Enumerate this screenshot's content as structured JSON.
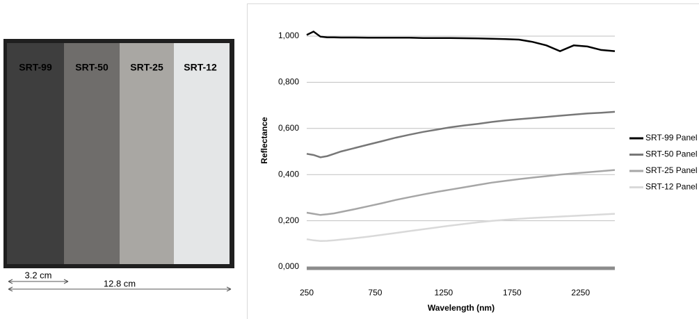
{
  "photo": {
    "panels": [
      "SRT-99",
      "SRT-50",
      "SRT-25",
      "SRT-12"
    ],
    "dimensions": [
      "3.2 cm",
      "12.8 cm"
    ]
  },
  "chart_data": {
    "type": "line",
    "x_label": "Wavelength (nm)",
    "y_label": "Reflectance",
    "x": [
      250,
      300,
      350,
      400,
      450,
      500,
      600,
      700,
      800,
      900,
      1000,
      1100,
      1200,
      1300,
      1400,
      1500,
      1600,
      1700,
      1800,
      1900,
      2000,
      2100,
      2200,
      2300,
      2400,
      2500
    ],
    "series": [
      {
        "name": "SRT-99 Panel",
        "color": "#000000",
        "values": [
          1.005,
          1.02,
          0.998,
          0.995,
          0.995,
          0.994,
          0.994,
          0.993,
          0.993,
          0.993,
          0.993,
          0.992,
          0.992,
          0.992,
          0.991,
          0.99,
          0.989,
          0.987,
          0.985,
          0.975,
          0.96,
          0.935,
          0.96,
          0.955,
          0.94,
          0.935
        ]
      },
      {
        "name": "SRT-50 Panel",
        "color": "#777777",
        "values": [
          0.49,
          0.485,
          0.475,
          0.48,
          0.49,
          0.5,
          0.515,
          0.53,
          0.545,
          0.56,
          0.573,
          0.585,
          0.595,
          0.605,
          0.613,
          0.62,
          0.628,
          0.635,
          0.64,
          0.645,
          0.65,
          0.655,
          0.66,
          0.665,
          0.668,
          0.672
        ]
      },
      {
        "name": "SRT-25 Panel",
        "color": "#a6a6a6",
        "values": [
          0.235,
          0.23,
          0.225,
          0.228,
          0.232,
          0.238,
          0.25,
          0.263,
          0.276,
          0.29,
          0.302,
          0.314,
          0.325,
          0.335,
          0.345,
          0.355,
          0.365,
          0.373,
          0.38,
          0.387,
          0.393,
          0.4,
          0.405,
          0.41,
          0.415,
          0.42
        ]
      },
      {
        "name": "SRT-12 Panel",
        "color": "#d9d9d9",
        "values": [
          0.12,
          0.115,
          0.112,
          0.113,
          0.115,
          0.118,
          0.124,
          0.131,
          0.139,
          0.147,
          0.155,
          0.163,
          0.171,
          0.179,
          0.186,
          0.193,
          0.199,
          0.204,
          0.208,
          0.212,
          0.215,
          0.218,
          0.221,
          0.224,
          0.227,
          0.23
        ]
      }
    ],
    "xlim": [
      250,
      2500
    ],
    "ylim": [
      0,
      1.1
    ],
    "xticks": [
      250,
      750,
      1250,
      1750,
      2250
    ],
    "yticks": [
      {
        "value": 0,
        "label": "0,000"
      },
      {
        "value": 0.2,
        "label": "0,200"
      },
      {
        "value": 0.4,
        "label": "0,400"
      },
      {
        "value": 0.6,
        "label": "0,600"
      },
      {
        "value": 0.8,
        "label": "0,800"
      },
      {
        "value": 1,
        "label": "1,000"
      }
    ],
    "grid": true,
    "legend": "right"
  }
}
